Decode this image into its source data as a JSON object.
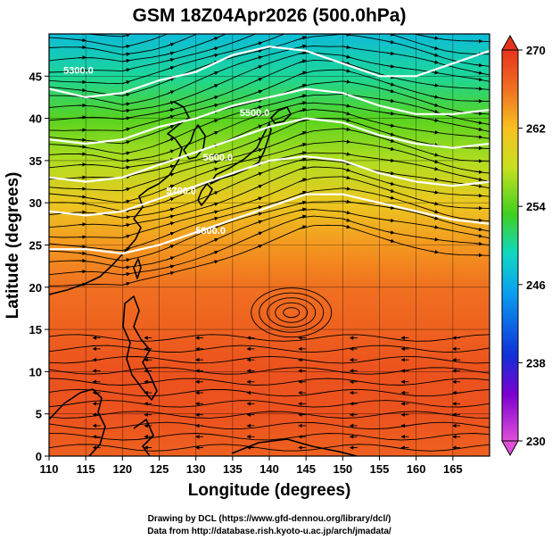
{
  "title": "GSM 18Z04Apr2026 (500.0hPa)",
  "xlabel": "Longitude (degrees)",
  "ylabel": "Latitude  (degrees)",
  "xticks": [
    "110",
    "115",
    "120",
    "125",
    "130",
    "135",
    "140",
    "145",
    "150",
    "155",
    "160",
    "165"
  ],
  "yticks": [
    "0",
    "5",
    "10",
    "15",
    "20",
    "25",
    "30",
    "35",
    "40",
    "45"
  ],
  "colorbar_ticks": [
    "270",
    "262",
    "254",
    "246",
    "238",
    "230"
  ],
  "contour_labels": [
    "5300.0",
    "5500.0",
    "5600.0",
    "5700.0",
    "5800.0"
  ],
  "credit_line1": "Drawing by DCL (https://www.gfd-dennou.org/library/dcl/)",
  "credit_line2": "Data from http://database.rish.kyoto-u.ac.jp/arch/jmadata/",
  "chart_data": {
    "type": "heatmap",
    "title": "GSM 18Z04Apr2026 (500.0hPa)",
    "field": "temperature (K) with streamlines and geopotential height contours",
    "xlabel": "Longitude (degrees)",
    "ylabel": "Latitude  (degrees)",
    "xlim": [
      110,
      170
    ],
    "ylim": [
      0,
      50
    ],
    "colorbar_range": [
      230,
      270
    ],
    "colorbar_ticks": [
      230,
      238,
      246,
      254,
      262,
      270
    ],
    "temperature_by_latitude": [
      {
        "lat": 0,
        "temp": 267
      },
      {
        "lat": 5,
        "temp": 268
      },
      {
        "lat": 10,
        "temp": 268
      },
      {
        "lat": 15,
        "temp": 267
      },
      {
        "lat": 20,
        "temp": 266
      },
      {
        "lat": 25,
        "temp": 264
      },
      {
        "lat": 30,
        "temp": 261
      },
      {
        "lat": 35,
        "temp": 257
      },
      {
        "lat": 40,
        "temp": 253
      },
      {
        "lat": 45,
        "temp": 249
      },
      {
        "lat": 50,
        "temp": 246
      }
    ],
    "contours": [
      {
        "level": 5300.0,
        "points": [
          [
            110,
            43.5
          ],
          [
            115,
            42.5
          ],
          [
            120,
            43
          ],
          [
            125,
            44.5
          ],
          [
            130,
            45.5
          ],
          [
            135,
            47.5
          ],
          [
            140,
            48.5
          ],
          [
            145,
            48
          ],
          [
            150,
            46.5
          ],
          [
            155,
            45
          ],
          [
            160,
            45
          ],
          [
            165,
            46.5
          ],
          [
            170,
            48
          ]
        ]
      },
      {
        "level": 5500.0,
        "points": [
          [
            110,
            37.5
          ],
          [
            115,
            37
          ],
          [
            120,
            37.5
          ],
          [
            125,
            39
          ],
          [
            130,
            40
          ],
          [
            135,
            41.5
          ],
          [
            140,
            42.5
          ],
          [
            145,
            43.5
          ],
          [
            150,
            43
          ],
          [
            155,
            41.5
          ],
          [
            160,
            40.5
          ],
          [
            165,
            40.5
          ],
          [
            170,
            41
          ]
        ]
      },
      {
        "level": 5600.0,
        "points": [
          [
            110,
            33
          ],
          [
            115,
            32.5
          ],
          [
            120,
            33
          ],
          [
            125,
            34.5
          ],
          [
            130,
            36
          ],
          [
            135,
            37.5
          ],
          [
            140,
            39
          ],
          [
            145,
            40
          ],
          [
            150,
            39.5
          ],
          [
            155,
            38
          ],
          [
            160,
            37
          ],
          [
            165,
            36.5
          ],
          [
            170,
            37
          ]
        ]
      },
      {
        "level": 5700.0,
        "points": [
          [
            110,
            29
          ],
          [
            115,
            28.5
          ],
          [
            120,
            29
          ],
          [
            125,
            30.5
          ],
          [
            130,
            32
          ],
          [
            135,
            33.5
          ],
          [
            140,
            35
          ],
          [
            145,
            35.5
          ],
          [
            150,
            35
          ],
          [
            155,
            33.5
          ],
          [
            160,
            32.5
          ],
          [
            165,
            32
          ],
          [
            170,
            32.5
          ]
        ]
      },
      {
        "level": 5800.0,
        "points": [
          [
            110,
            24.5
          ],
          [
            115,
            24.5
          ],
          [
            120,
            24
          ],
          [
            125,
            25
          ],
          [
            130,
            26.5
          ],
          [
            135,
            28
          ],
          [
            140,
            29.5
          ],
          [
            145,
            31
          ],
          [
            150,
            31
          ],
          [
            155,
            30
          ],
          [
            160,
            29
          ],
          [
            165,
            28
          ],
          [
            170,
            27.5
          ]
        ]
      }
    ],
    "contour_label_positions": [
      [
        114,
        45.3
      ],
      [
        138,
        40.3
      ],
      [
        133,
        35
      ],
      [
        128,
        31
      ],
      [
        132,
        26.3
      ]
    ],
    "cyclonic_circulation_center": [
      143,
      17
    ],
    "grid": true
  }
}
